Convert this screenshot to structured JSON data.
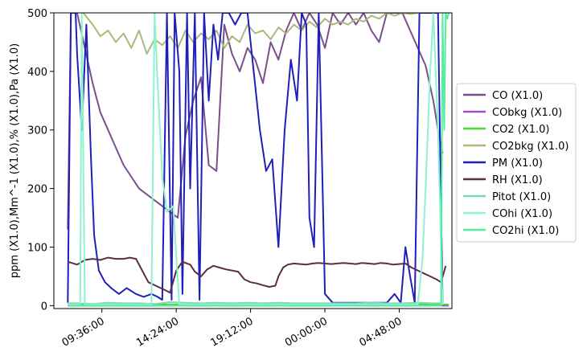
{
  "chart_data": {
    "type": "line",
    "title": "",
    "xlabel": "",
    "ylabel": "ppm (X1.0),Mm^-1 (X1.0),% (X1.0),Pa (X1.0)",
    "x_range_hours": [
      6.5,
      32.2
    ],
    "ylim": [
      -5,
      500
    ],
    "y_ticks": [
      0,
      100,
      200,
      300,
      400,
      500
    ],
    "x_ticks": [
      {
        "hour": 9.6,
        "label": "09:36:00"
      },
      {
        "hour": 14.4,
        "label": "14:24:00"
      },
      {
        "hour": 19.2,
        "label": "19:12:00"
      },
      {
        "hour": 24.0,
        "label": "00:00:00"
      },
      {
        "hour": 28.8,
        "label": "04:48:00"
      }
    ],
    "grid": false,
    "legend_position": "outside-right",
    "series": [
      {
        "name": "CO (X1.0)",
        "color": "#7a4f8c",
        "x": [
          7.4,
          7.6,
          8.0,
          8.5,
          9.0,
          9.5,
          10.0,
          10.5,
          11.0,
          11.5,
          12.0,
          12.5,
          13.0,
          13.5,
          14.0,
          14.5,
          15.0,
          15.5,
          16.0,
          16.5,
          17.0,
          17.5,
          18.0,
          18.5,
          19.0,
          19.5,
          20.0,
          20.5,
          21.0,
          21.5,
          22.0,
          22.5,
          23.0,
          23.5,
          24.0,
          24.5,
          25.0,
          25.5,
          26.0,
          26.5,
          27.0,
          27.5,
          28.0,
          28.5,
          29.0,
          29.5,
          30.0,
          30.5,
          31.0,
          31.3,
          31.6
        ],
        "y": [
          130,
          500,
          500,
          440,
          380,
          330,
          300,
          270,
          240,
          220,
          200,
          190,
          180,
          170,
          160,
          150,
          290,
          350,
          390,
          240,
          230,
          480,
          430,
          400,
          440,
          420,
          380,
          450,
          420,
          470,
          500,
          470,
          500,
          480,
          440,
          500,
          480,
          500,
          480,
          500,
          470,
          450,
          500,
          500,
          500,
          470,
          440,
          410,
          350,
          300,
          260
        ]
      },
      {
        "name": "CObkg (X1.0)",
        "color": "#9b4fd6",
        "x": [
          7.4,
          32.0
        ],
        "y": [
          0,
          0
        ]
      },
      {
        "name": "CO2 (X1.0)",
        "color": "#4dd62e",
        "x": [
          7.4,
          32.0
        ],
        "y": [
          2,
          2
        ]
      },
      {
        "name": "CO2bkg (X1.0)",
        "color": "#a9b97e",
        "x": [
          8.4,
          9.0,
          9.5,
          10.0,
          10.5,
          11.0,
          11.5,
          12.0,
          12.5,
          13.0,
          13.5,
          14.0,
          14.5,
          15.0,
          15.5,
          16.0,
          16.5,
          17.0,
          17.5,
          18.0,
          18.5,
          19.0,
          19.5,
          20.0,
          20.5,
          21.0,
          21.5,
          22.0,
          22.5,
          23.0,
          23.5,
          24.0,
          24.5,
          25.0,
          25.5,
          26.0,
          26.5,
          27.0,
          27.5,
          28.0,
          28.5,
          29.0,
          29.5,
          30.0
        ],
        "y": [
          500,
          480,
          460,
          470,
          450,
          465,
          440,
          470,
          430,
          455,
          445,
          460,
          440,
          470,
          450,
          465,
          455,
          470,
          440,
          460,
          450,
          480,
          465,
          470,
          455,
          475,
          465,
          480,
          470,
          485,
          475,
          490,
          480,
          485,
          480,
          490,
          485,
          495,
          490,
          500,
          495,
          500,
          498,
          500
        ]
      },
      {
        "name": "PM (X1.0)",
        "color": "#2020b8",
        "x": [
          7.4,
          7.6,
          7.9,
          8.0,
          8.3,
          8.6,
          8.9,
          9.1,
          9.4,
          9.8,
          10.2,
          10.7,
          11.2,
          11.8,
          12.3,
          12.8,
          13.2,
          13.5,
          13.8,
          14.1,
          14.3,
          14.6,
          14.8,
          15.1,
          15.3,
          15.6,
          15.9,
          16.2,
          16.5,
          16.8,
          17.1,
          17.4,
          17.8,
          18.2,
          18.6,
          19.0,
          19.4,
          19.8,
          20.2,
          20.6,
          21.0,
          21.4,
          21.8,
          22.2,
          22.5,
          22.8,
          23.0,
          23.3,
          23.6,
          24.0,
          24.5,
          25.0,
          25.5,
          26.0,
          26.5,
          27.0,
          27.5,
          28.0,
          28.5,
          28.9,
          29.2,
          29.5,
          29.8,
          30.1,
          30.4,
          30.7,
          31.0,
          31.3,
          31.6
        ],
        "y": [
          5,
          500,
          500,
          430,
          300,
          480,
          250,
          120,
          60,
          40,
          30,
          20,
          30,
          20,
          15,
          20,
          15,
          10,
          500,
          10,
          500,
          400,
          20,
          500,
          200,
          500,
          10,
          500,
          350,
          480,
          420,
          500,
          500,
          480,
          500,
          500,
          400,
          300,
          230,
          250,
          100,
          300,
          420,
          350,
          500,
          480,
          150,
          100,
          500,
          20,
          5,
          5,
          5,
          5,
          5,
          5,
          5,
          5,
          20,
          5,
          100,
          50,
          5,
          500,
          500,
          500,
          500,
          500,
          5
        ]
      },
      {
        "name": "RH (X1.0)",
        "color": "#5a2e45",
        "x": [
          7.4,
          8.0,
          8.5,
          9.0,
          9.5,
          10.0,
          10.5,
          11.0,
          11.4,
          11.8,
          12.2,
          12.6,
          13.0,
          13.4,
          13.8,
          14.0,
          14.4,
          14.8,
          15.1,
          15.3,
          15.6,
          16.0,
          16.4,
          16.8,
          17.2,
          17.6,
          18.0,
          18.4,
          18.8,
          19.2,
          19.6,
          20.0,
          20.4,
          20.8,
          21.0,
          21.3,
          21.6,
          22.0,
          22.4,
          22.8,
          23.2,
          23.6,
          24.0,
          24.4,
          24.8,
          25.2,
          25.6,
          26.0,
          26.4,
          26.8,
          27.2,
          27.6,
          28.0,
          28.4,
          28.8,
          29.2,
          29.6,
          30.0,
          30.4,
          30.8,
          31.2,
          31.5,
          31.8
        ],
        "y": [
          75,
          70,
          78,
          80,
          78,
          82,
          80,
          80,
          82,
          80,
          60,
          40,
          35,
          30,
          25,
          22,
          60,
          75,
          72,
          70,
          58,
          50,
          62,
          68,
          65,
          62,
          60,
          58,
          45,
          40,
          38,
          35,
          32,
          34,
          50,
          65,
          70,
          72,
          71,
          70,
          72,
          73,
          72,
          71,
          72,
          73,
          72,
          71,
          73,
          72,
          71,
          73,
          72,
          70,
          71,
          72,
          65,
          60,
          55,
          50,
          45,
          40,
          68
        ]
      },
      {
        "name": "Pitot (X1.0)",
        "color": "#7dd9b4",
        "x": [
          7.4,
          8.0,
          9.0,
          10.0,
          11.0,
          12.0,
          13.0,
          14.0,
          15.0,
          16.0,
          17.0,
          18.0,
          19.0,
          20.0,
          21.0,
          22.0,
          23.0,
          24.0,
          25.0,
          26.0,
          27.0,
          28.0,
          29.0,
          30.0,
          31.0,
          31.6
        ],
        "y": [
          4,
          4,
          3,
          5,
          4,
          4,
          3,
          6,
          5,
          4,
          5,
          4,
          5,
          4,
          5,
          4,
          4,
          4,
          4,
          4,
          5,
          4,
          4,
          5,
          4,
          4
        ]
      },
      {
        "name": "COhi (X1.0)",
        "color": "#8ff2cf",
        "x": [
          7.4,
          8.2,
          8.3,
          8.5,
          11.0,
          12.8,
          13.0,
          13.2,
          13.5,
          13.8,
          14.2,
          14.6,
          15.0,
          20.0,
          25.0,
          30.0,
          30.3,
          30.5,
          30.8,
          31.0,
          31.3,
          31.6
        ],
        "y": [
          2,
          2,
          500,
          2,
          2,
          2,
          500,
          380,
          220,
          160,
          170,
          2,
          2,
          2,
          2,
          2,
          80,
          200,
          400,
          500,
          300,
          2
        ]
      },
      {
        "name": "CO2hi (X1.0)",
        "color": "#55eea0",
        "x": [
          7.4,
          31.5,
          31.6,
          31.7,
          31.8,
          31.9,
          32.0
        ],
        "y": [
          0,
          0,
          500,
          300,
          500,
          490,
          500
        ]
      }
    ]
  }
}
